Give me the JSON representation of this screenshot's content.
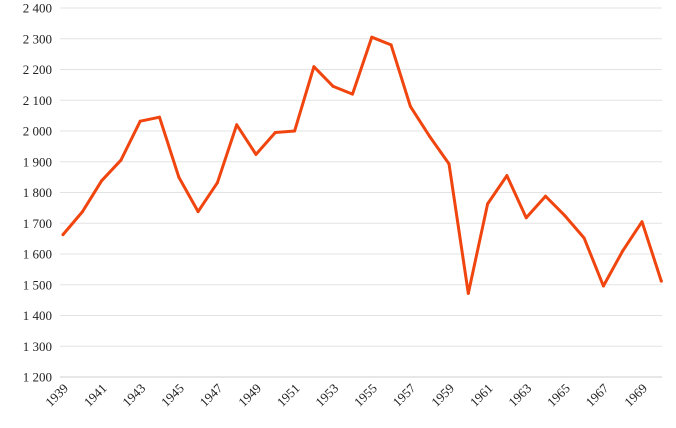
{
  "chart_data": {
    "type": "line",
    "title": "",
    "xlabel": "",
    "ylabel": "",
    "ylim": [
      1200,
      2400
    ],
    "y_ticks": [
      1200,
      1300,
      1400,
      1500,
      1600,
      1700,
      1800,
      1900,
      2000,
      2100,
      2200,
      2300,
      2400
    ],
    "y_tick_labels": [
      "1 200",
      "1 300",
      "1 400",
      "1 500",
      "1 600",
      "1 700",
      "1 800",
      "1 900",
      "2 000",
      "2 100",
      "2 200",
      "2 300",
      "2 400"
    ],
    "x_tick_labels": [
      "1939",
      "1941",
      "1943",
      "1945",
      "1947",
      "1949",
      "1951",
      "1953",
      "1955",
      "1957",
      "1959",
      "1961",
      "1963",
      "1965",
      "1967",
      "1969"
    ],
    "x": [
      1939,
      1940,
      1941,
      1942,
      1943,
      1944,
      1945,
      1946,
      1947,
      1948,
      1949,
      1950,
      1951,
      1952,
      1953,
      1954,
      1955,
      1956,
      1957,
      1958,
      1959,
      1960,
      1961,
      1962,
      1963,
      1964,
      1965,
      1966,
      1967,
      1968,
      1969,
      1970
    ],
    "grid": true,
    "legend": "none",
    "series": [
      {
        "color": "#f0450f",
        "values": [
          1663,
          1737,
          1838,
          1905,
          2032,
          2045,
          1850,
          1738,
          1832,
          2020,
          1924,
          1995,
          2000,
          2209,
          2145,
          2120,
          2305,
          2280,
          2080,
          1982,
          1893,
          1472,
          1763,
          1855,
          1718,
          1788,
          1725,
          1652,
          1496,
          1610,
          1705,
          1512
        ]
      }
    ]
  }
}
